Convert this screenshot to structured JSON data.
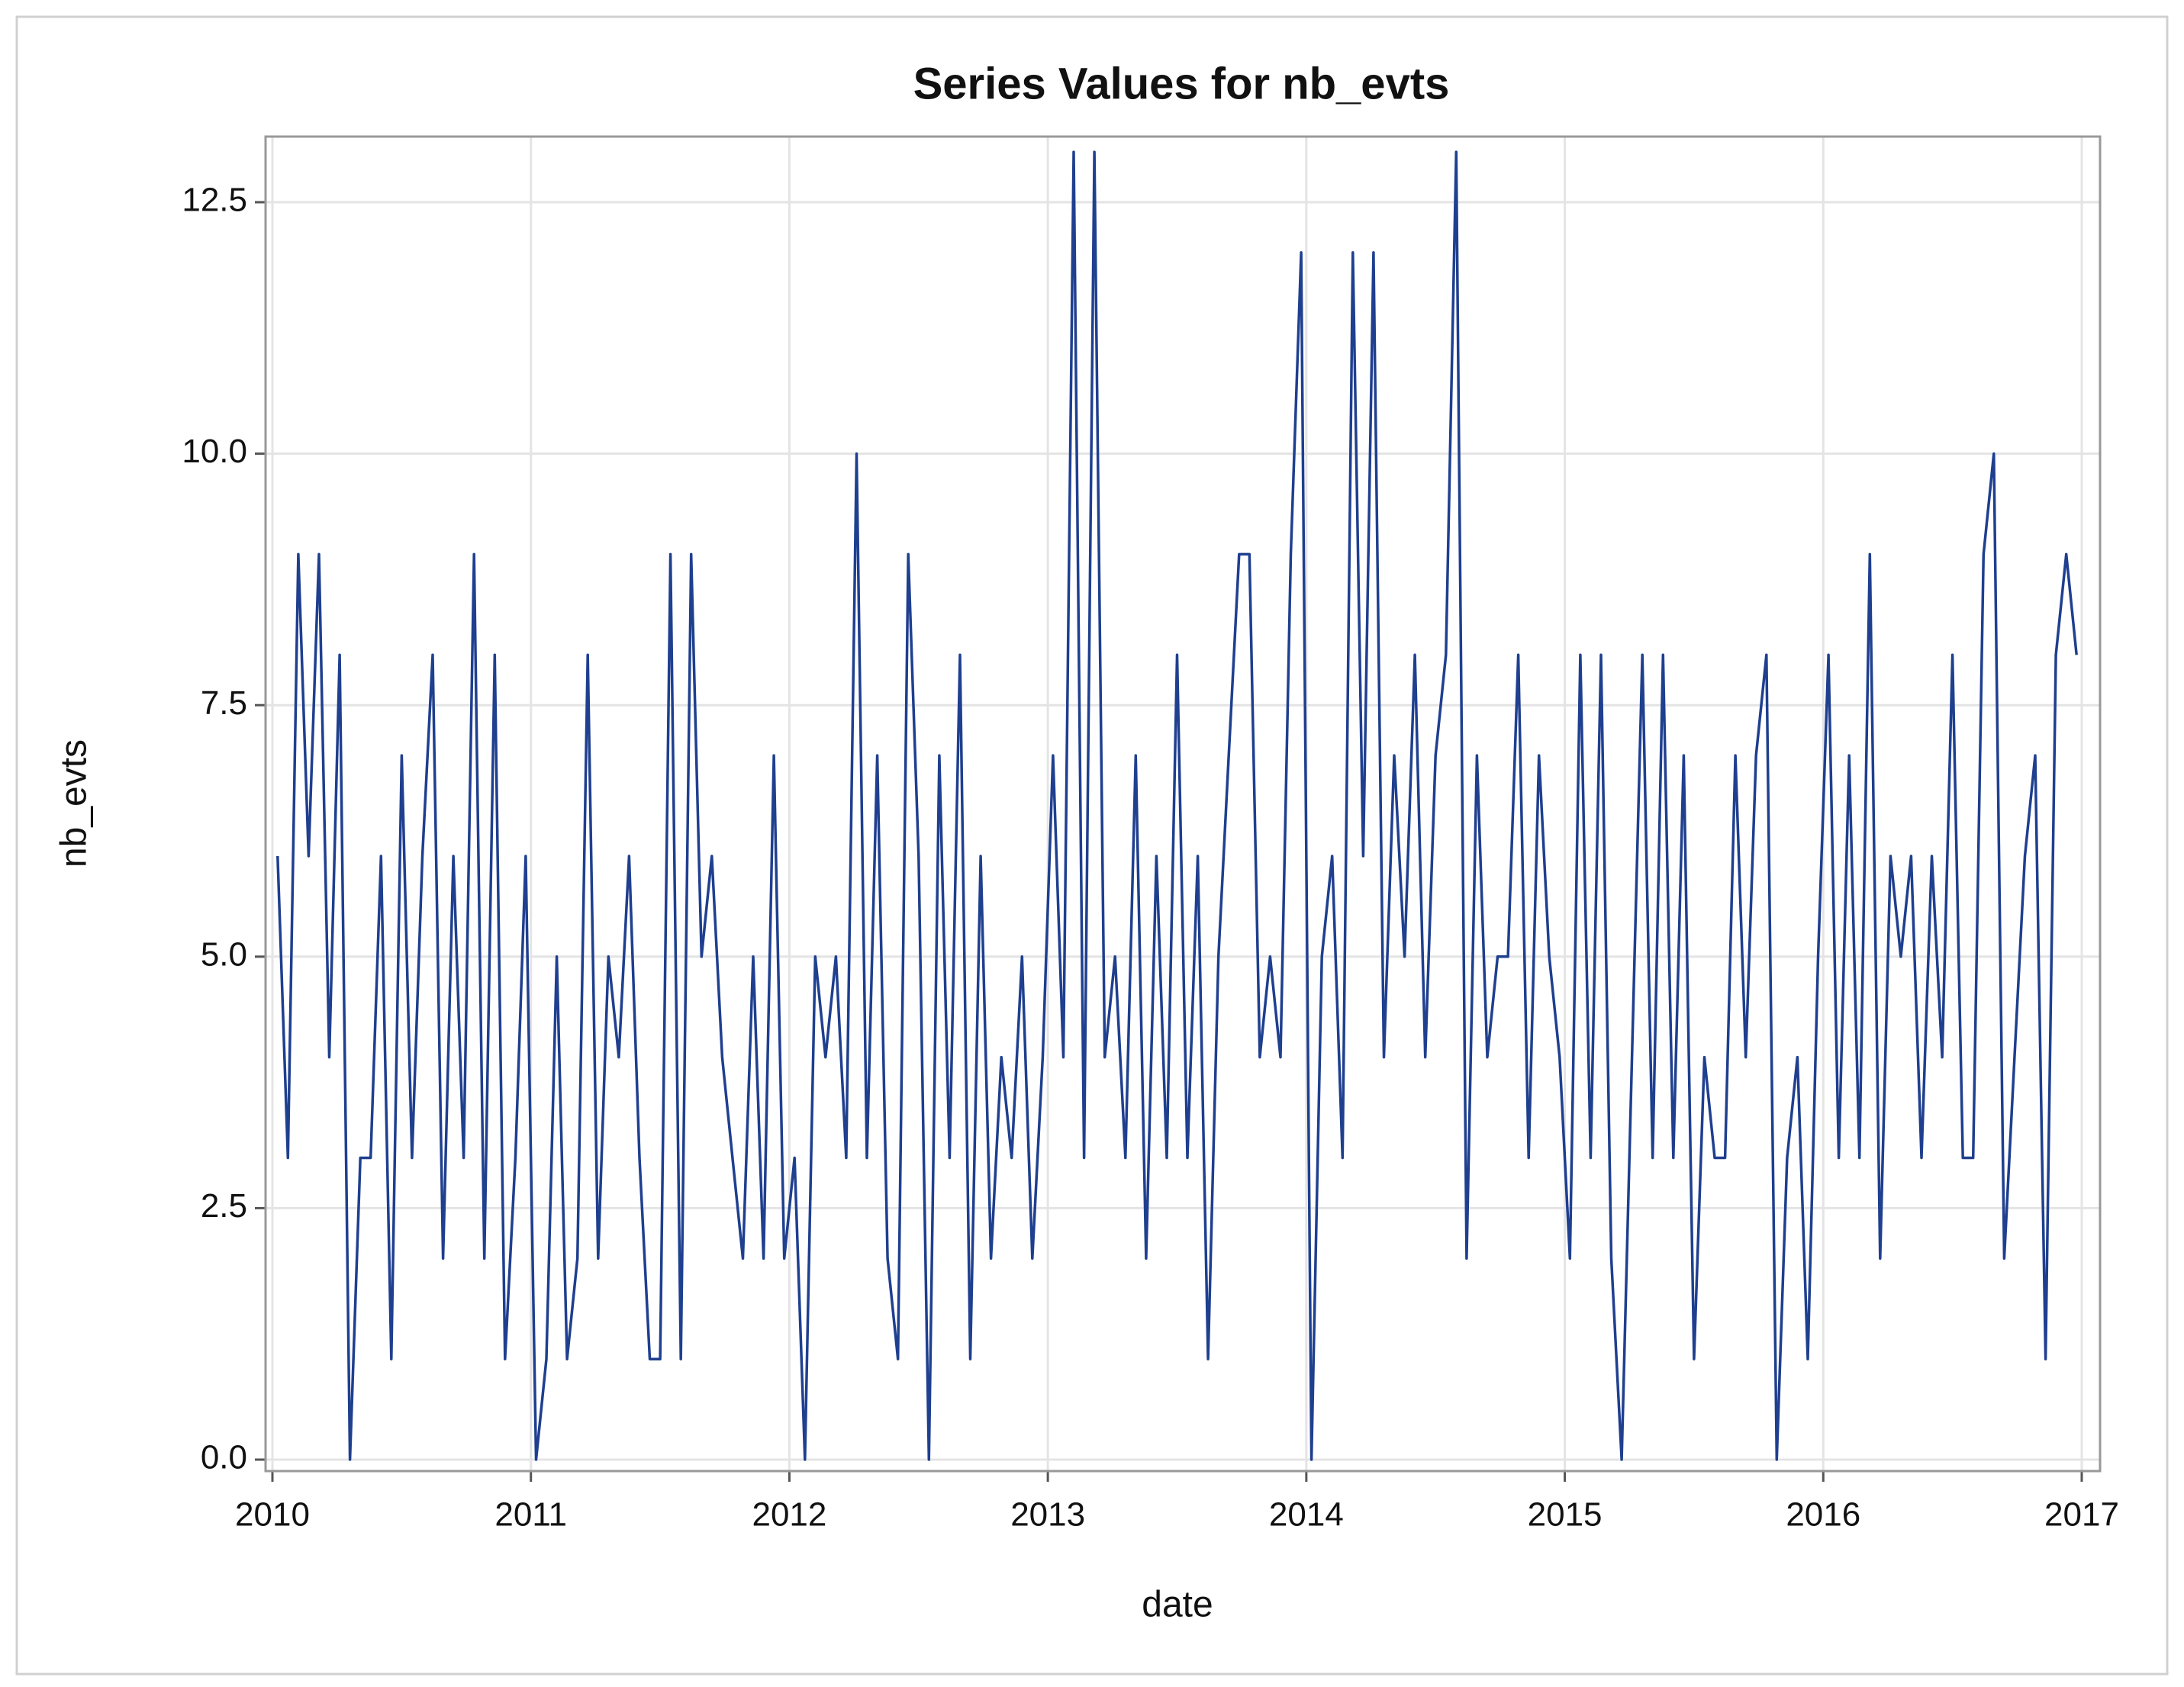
{
  "chart_data": {
    "type": "line",
    "title": "Series Values for nb_evts",
    "x_label": "date",
    "y_label": "nb_evts",
    "x": [
      2010.02,
      2010.06,
      2010.1,
      2010.14,
      2010.18,
      2010.22,
      2010.26,
      2010.3,
      2010.34,
      2010.38,
      2010.42,
      2010.46,
      2010.5,
      2010.54,
      2010.58,
      2010.62,
      2010.66,
      2010.7,
      2010.74,
      2010.78,
      2010.82,
      2010.86,
      2010.9,
      2010.94,
      2010.98,
      2011.02,
      2011.06,
      2011.1,
      2011.14,
      2011.18,
      2011.22,
      2011.26,
      2011.3,
      2011.34,
      2011.38,
      2011.42,
      2011.46,
      2011.5,
      2011.54,
      2011.58,
      2011.62,
      2011.66,
      2011.7,
      2011.74,
      2011.78,
      2011.82,
      2011.86,
      2011.9,
      2011.94,
      2011.98,
      2012.02,
      2012.06,
      2012.1,
      2012.14,
      2012.18,
      2012.22,
      2012.26,
      2012.3,
      2012.34,
      2012.38,
      2012.42,
      2012.46,
      2012.5,
      2012.54,
      2012.58,
      2012.62,
      2012.66,
      2012.7,
      2012.74,
      2012.78,
      2012.82,
      2012.86,
      2012.9,
      2012.94,
      2012.98,
      2013.02,
      2013.06,
      2013.1,
      2013.14,
      2013.18,
      2013.22,
      2013.26,
      2013.3,
      2013.34,
      2013.38,
      2013.42,
      2013.46,
      2013.5,
      2013.54,
      2013.58,
      2013.62,
      2013.66,
      2013.7,
      2013.74,
      2013.78,
      2013.82,
      2013.86,
      2013.9,
      2013.94,
      2013.98,
      2014.02,
      2014.06,
      2014.1,
      2014.14,
      2014.18,
      2014.22,
      2014.26,
      2014.3,
      2014.34,
      2014.38,
      2014.42,
      2014.46,
      2014.5,
      2014.54,
      2014.58,
      2014.62,
      2014.66,
      2014.7,
      2014.74,
      2014.78,
      2014.82,
      2014.86,
      2014.9,
      2014.94,
      2014.98,
      2015.02,
      2015.06,
      2015.1,
      2015.14,
      2015.18,
      2015.22,
      2015.26,
      2015.3,
      2015.34,
      2015.38,
      2015.42,
      2015.46,
      2015.5,
      2015.54,
      2015.58,
      2015.62,
      2015.66,
      2015.7,
      2015.74,
      2015.78,
      2015.82,
      2015.86,
      2015.9,
      2015.94,
      2015.98,
      2016.02,
      2016.06,
      2016.1,
      2016.14,
      2016.18,
      2016.22,
      2016.26,
      2016.3,
      2016.34,
      2016.38,
      2016.42,
      2016.46,
      2016.5,
      2016.54,
      2016.58,
      2016.62,
      2016.66,
      2016.7,
      2016.74,
      2016.78,
      2016.82,
      2016.86,
      2016.9,
      2016.94,
      2016.98
    ],
    "series": [
      {
        "name": "nb_evts",
        "color": "#1f3f8f",
        "values": [
          6,
          3,
          9,
          6,
          9,
          4,
          8,
          0,
          3,
          3,
          6,
          1,
          7,
          3,
          6,
          8,
          2,
          6,
          3,
          9,
          2,
          8,
          1,
          3,
          6,
          0,
          1,
          5,
          1,
          2,
          8,
          2,
          5,
          4,
          6,
          3,
          1,
          1,
          9,
          1,
          9,
          5,
          6,
          4,
          3,
          2,
          5,
          2,
          7,
          2,
          3,
          0,
          5,
          4,
          5,
          3,
          10,
          3,
          7,
          2,
          1,
          9,
          6,
          0,
          7,
          3,
          8,
          1,
          6,
          2,
          4,
          3,
          5,
          2,
          4,
          7,
          4,
          13,
          3,
          13,
          4,
          5,
          3,
          7,
          2,
          6,
          3,
          8,
          3,
          6,
          1,
          5,
          7,
          9,
          9,
          4,
          5,
          4,
          9,
          12,
          0,
          5,
          6,
          3,
          12,
          6,
          12,
          4,
          7,
          5,
          8,
          4,
          7,
          8,
          13,
          2,
          7,
          4,
          5,
          5,
          8,
          3,
          7,
          5,
          4,
          2,
          8,
          3,
          8,
          2,
          0,
          4,
          8,
          3,
          8,
          3,
          7,
          1,
          4,
          3,
          3,
          7,
          4,
          7,
          8,
          0,
          3,
          4,
          1,
          5,
          8,
          3,
          7,
          3,
          9,
          2,
          6,
          5,
          6,
          3,
          6,
          4,
          8,
          3,
          3,
          9,
          10,
          2,
          4,
          6,
          7,
          1,
          8,
          9,
          8
        ]
      }
    ],
    "xlim": [
      2010,
      2017
    ],
    "xticks": [
      2010,
      2011,
      2012,
      2013,
      2014,
      2015,
      2016,
      2017
    ],
    "ylim": [
      0,
      12.5
    ],
    "yticks": [
      {
        "value": 0,
        "label": "0.0"
      },
      2.5,
      {
        "value": 5,
        "label": "5.0"
      },
      7.5,
      {
        "value": 10,
        "label": "10.0"
      },
      12.5
    ],
    "grid": true
  }
}
